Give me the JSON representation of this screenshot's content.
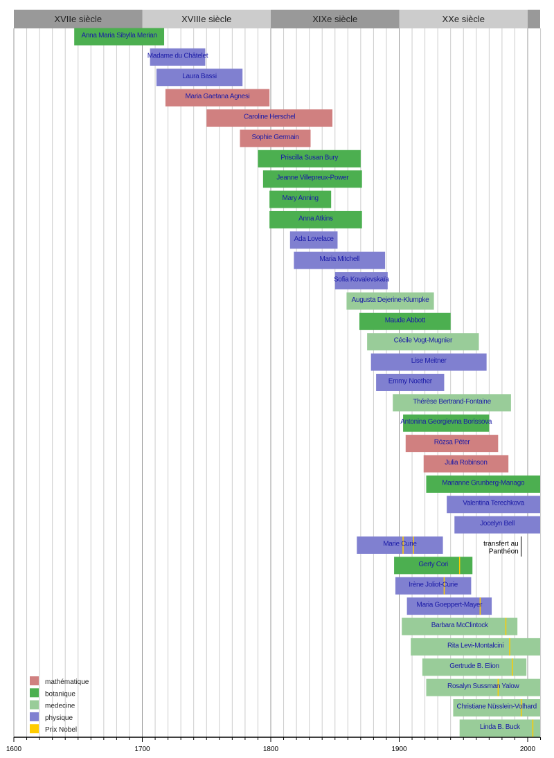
{
  "chart_data": {
    "type": "timeline",
    "title": "",
    "xlim": [
      1600,
      2012
    ],
    "x_ticks": [
      1600,
      1700,
      1800,
      1900,
      2000
    ],
    "grid": true,
    "centuries": [
      {
        "label": "XVIIe siècle",
        "start": 1600,
        "end": 1700
      },
      {
        "label": "XVIIIe siècle",
        "start": 1700,
        "end": 1800
      },
      {
        "label": "XIXe siècle",
        "start": 1800,
        "end": 1900
      },
      {
        "label": "XXe siècle",
        "start": 1900,
        "end": 2000
      },
      {
        "label": "",
        "start": 2000,
        "end": 2012
      }
    ],
    "categories": {
      "mathematique": {
        "label": "mathématique",
        "color": "#d08080"
      },
      "botanique": {
        "label": "botanique",
        "color": "#4caf50"
      },
      "medecine": {
        "label": "medecine",
        "color": "#99cc99"
      },
      "physique": {
        "label": "physique",
        "color": "#8080d0"
      },
      "nobel": {
        "label": "Prix Nobel",
        "color": "#ffcc00"
      }
    },
    "legend_order": [
      "mathematique",
      "botanique",
      "medecine",
      "physique",
      "nobel"
    ],
    "legend_position": "bottom-left",
    "people": [
      {
        "name": "Anna Maria Sibylla Merian",
        "start": 1647,
        "end": 1717,
        "cat": "botanique"
      },
      {
        "name": "Madame du Châtelet",
        "start": 1706,
        "end": 1749,
        "cat": "physique"
      },
      {
        "name": "Laura Bassi",
        "start": 1711,
        "end": 1778,
        "cat": "physique"
      },
      {
        "name": "Maria Gaetana Agnesi",
        "start": 1718,
        "end": 1799,
        "cat": "mathematique"
      },
      {
        "name": "Caroline Herschel",
        "start": 1750,
        "end": 1848,
        "cat": "mathematique"
      },
      {
        "name": "Sophie Germain",
        "start": 1776,
        "end": 1831,
        "cat": "mathematique"
      },
      {
        "name": "Priscilla Susan Bury",
        "start": 1790,
        "end": 1870,
        "cat": "botanique"
      },
      {
        "name": "Jeanne Villepreux-Power",
        "start": 1794,
        "end": 1871,
        "cat": "botanique"
      },
      {
        "name": "Mary Anning",
        "start": 1799,
        "end": 1847,
        "cat": "botanique"
      },
      {
        "name": "Anna Atkins",
        "start": 1799,
        "end": 1871,
        "cat": "botanique"
      },
      {
        "name": "Ada Lovelace",
        "start": 1815,
        "end": 1852,
        "cat": "physique"
      },
      {
        "name": "Maria Mitchell",
        "start": 1818,
        "end": 1889,
        "cat": "physique"
      },
      {
        "name": "Sofia Kovalevskaïa",
        "start": 1850,
        "end": 1891,
        "cat": "physique"
      },
      {
        "name": "Augusta Dejerine-Klumpke",
        "start": 1859,
        "end": 1927,
        "cat": "medecine"
      },
      {
        "name": "Maude Abbott",
        "start": 1869,
        "end": 1940,
        "cat": "botanique"
      },
      {
        "name": "Cécile Vogt-Mugnier",
        "start": 1875,
        "end": 1962,
        "cat": "medecine"
      },
      {
        "name": "Lise Meitner",
        "start": 1878,
        "end": 1968,
        "cat": "physique"
      },
      {
        "name": "Emmy Noether",
        "start": 1882,
        "end": 1935,
        "cat": "physique"
      },
      {
        "name": "Thérèse Bertrand-Fontaine",
        "start": 1895,
        "end": 1987,
        "cat": "medecine"
      },
      {
        "name": "Antonina Georgievna Borissova",
        "start": 1903,
        "end": 1970,
        "cat": "botanique"
      },
      {
        "name": "Rózsa Péter",
        "start": 1905,
        "end": 1977,
        "cat": "mathematique"
      },
      {
        "name": "Julia Robinson",
        "start": 1919,
        "end": 1985,
        "cat": "mathematique"
      },
      {
        "name": "Marianne Grunberg-Manago",
        "start": 1921,
        "end": 2013,
        "cat": "botanique"
      },
      {
        "name": "Valentina Terechkova",
        "start": 1937,
        "end": 2013,
        "cat": "physique"
      },
      {
        "name": "Jocelyn Bell",
        "start": 1943,
        "end": 2013,
        "cat": "physique"
      },
      {
        "name": "Marie Curie",
        "start": 1867,
        "end": 1934,
        "cat": "physique",
        "nobel": [
          1903,
          1911
        ],
        "pantheon": 1995
      },
      {
        "name": "Gerty Cori",
        "start": 1896,
        "end": 1957,
        "cat": "botanique",
        "nobel": [
          1947
        ]
      },
      {
        "name": "Irène Joliot-Curie",
        "start": 1897,
        "end": 1956,
        "cat": "physique",
        "nobel": [
          1935
        ]
      },
      {
        "name": "Maria Goeppert-Mayer",
        "start": 1906,
        "end": 1972,
        "cat": "physique",
        "nobel": [
          1963
        ]
      },
      {
        "name": "Barbara McClintock",
        "start": 1902,
        "end": 1992,
        "cat": "medecine",
        "nobel": [
          1983
        ]
      },
      {
        "name": "Rita Levi-Montalcini",
        "start": 1909,
        "end": 2013,
        "cat": "medecine",
        "nobel": [
          1986
        ]
      },
      {
        "name": "Gertrude B. Elion",
        "start": 1918,
        "end": 1999,
        "cat": "medecine",
        "nobel": [
          1988
        ]
      },
      {
        "name": "Rosalyn Sussman Yalow",
        "start": 1921,
        "end": 2013,
        "cat": "medecine",
        "nobel": [
          1977
        ]
      },
      {
        "name": "Christiane Nüsslein-Volhard",
        "start": 1942,
        "end": 2013,
        "cat": "medecine",
        "nobel": [
          1995
        ]
      },
      {
        "name": "Linda B. Buck",
        "start": 1947,
        "end": 2013,
        "cat": "medecine",
        "nobel": [
          2004
        ]
      }
    ],
    "annotation": {
      "line1": "transfert au",
      "line2": "Panthéon"
    }
  }
}
